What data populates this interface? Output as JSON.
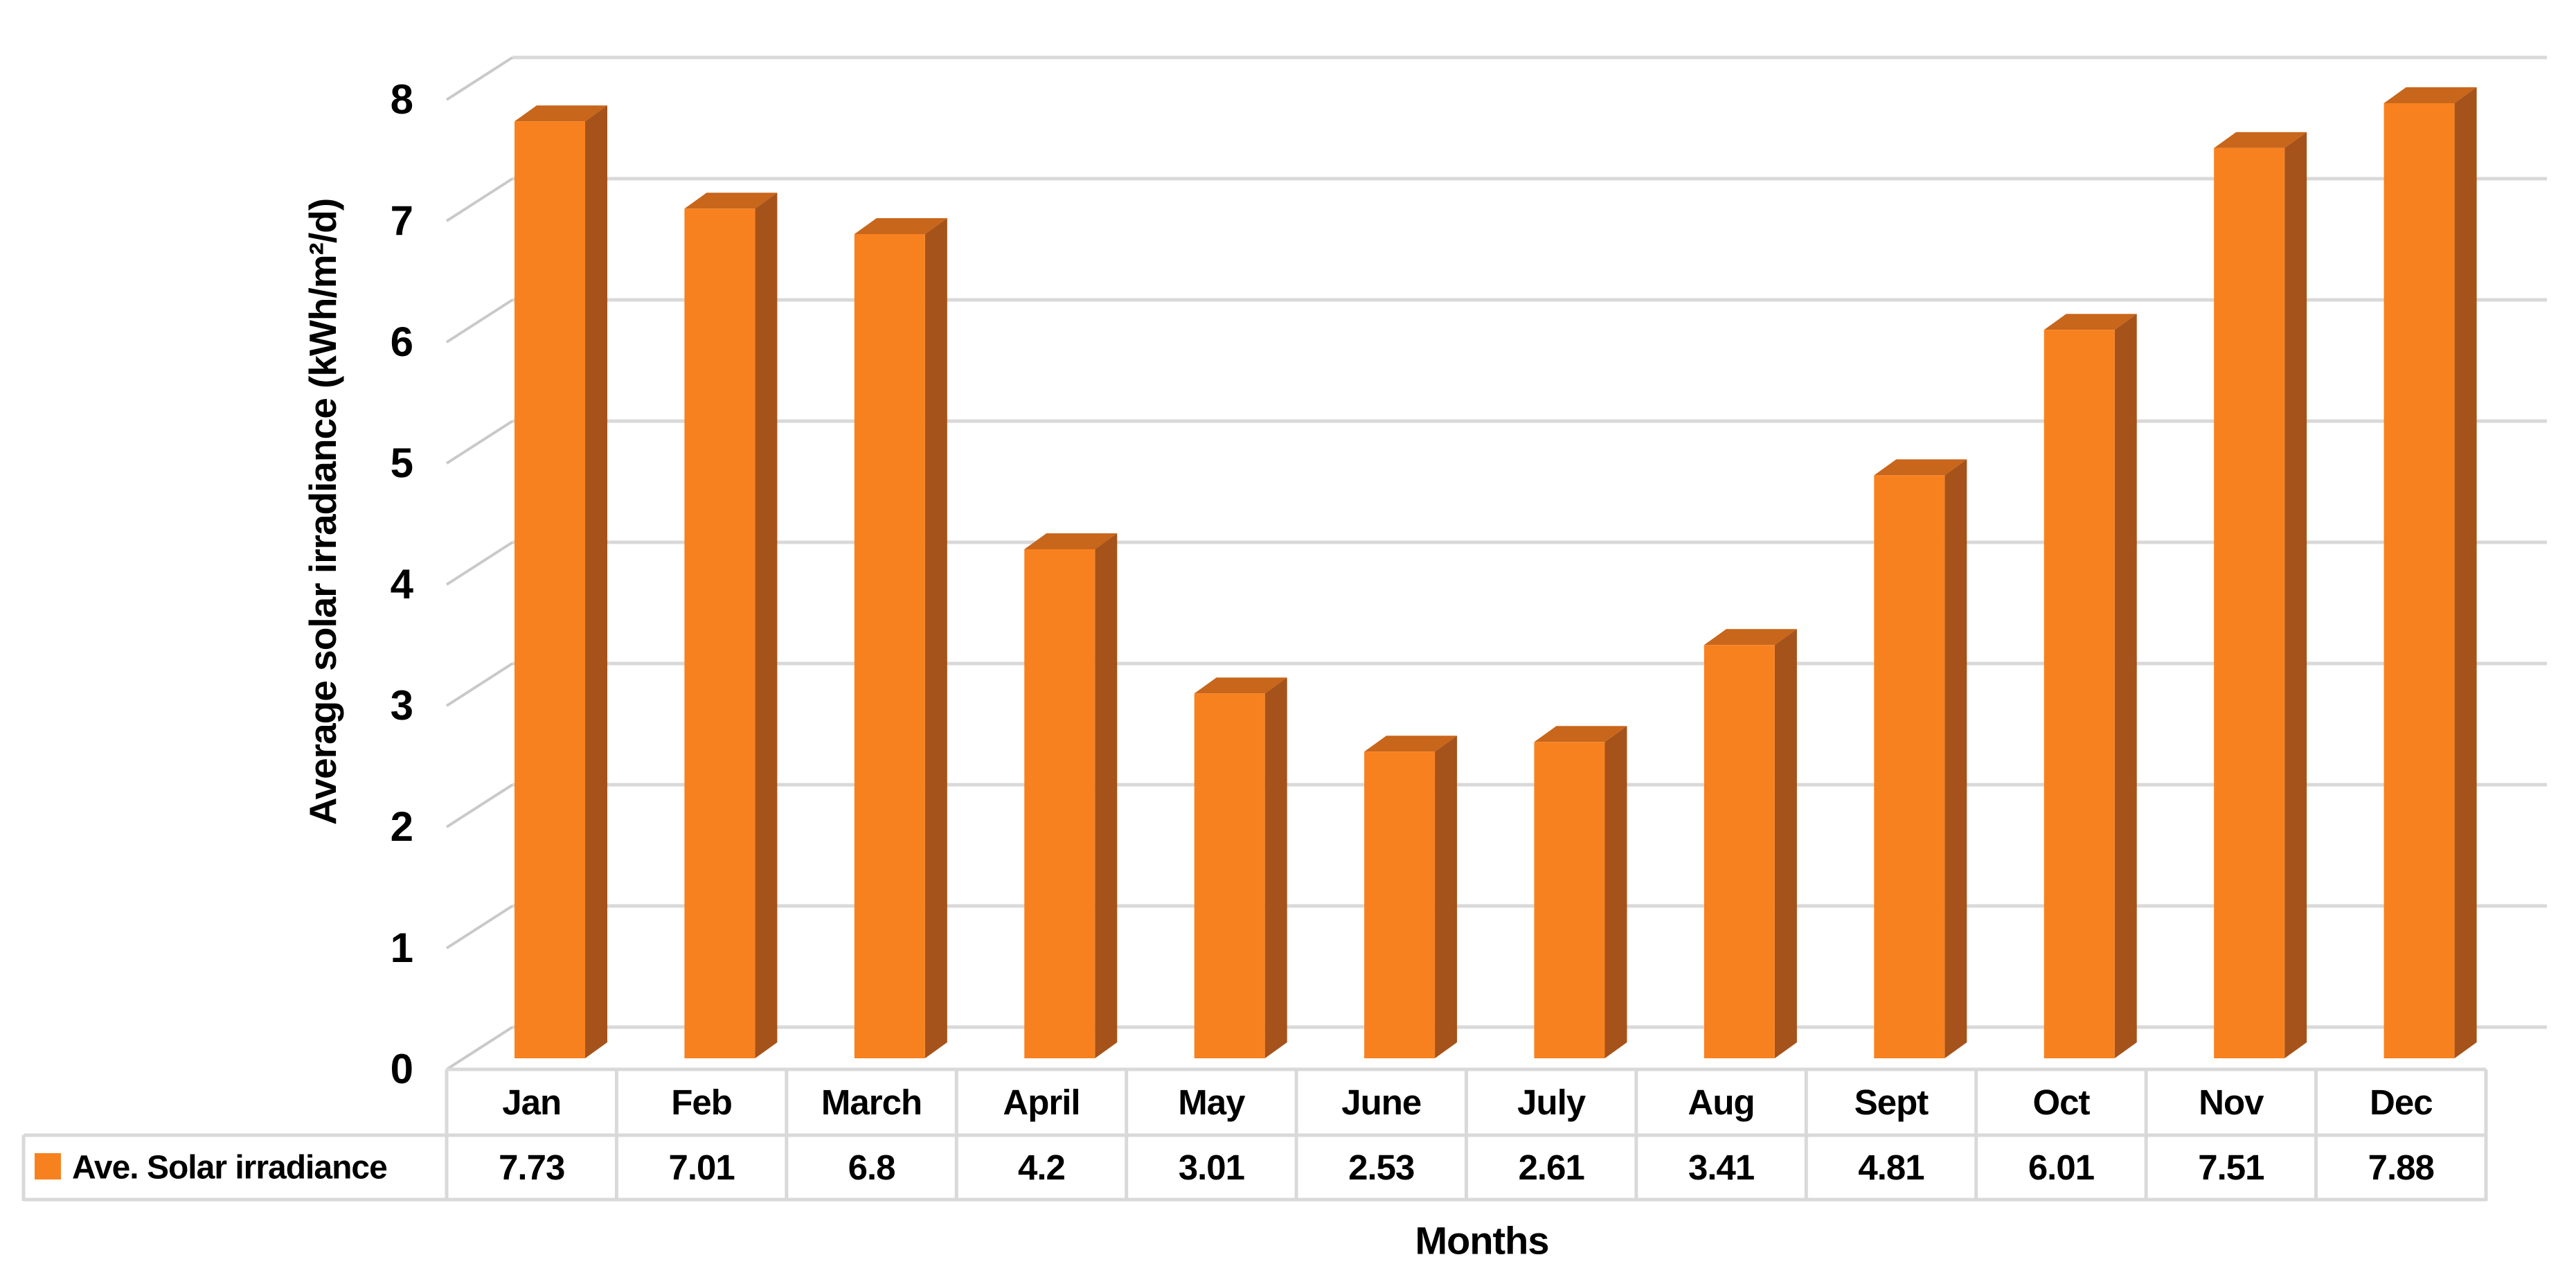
{
  "chart_data": {
    "type": "bar",
    "style": "excel-3d-column",
    "title": "",
    "categories": [
      "Jan",
      "Feb",
      "March",
      "April",
      "May",
      "June",
      "July",
      "Aug",
      "Sept",
      "Oct",
      "Nov",
      "Dec"
    ],
    "series": [
      {
        "name": "Ave. Solar irradiance",
        "values": [
          7.73,
          7.01,
          6.8,
          4.2,
          3.01,
          2.53,
          2.61,
          3.41,
          4.81,
          6.01,
          7.51,
          7.88
        ]
      }
    ],
    "xlabel": "Months",
    "ylabel": "Average solar irradiance (kWh/m²/d)",
    "ylim": [
      0,
      8
    ],
    "yticks": [
      0,
      1,
      2,
      3,
      4,
      5,
      6,
      7,
      8
    ],
    "grid": true,
    "legend_position": "left-of-data-table",
    "data_table_shown": true,
    "colors": {
      "bar_front": "#F8811F",
      "bar_top": "#C8661B",
      "bar_side": "#A5531A",
      "gridline": "#D9D9D9",
      "tick_connector": "#C9C9C9",
      "table_border": "#D9D9D9",
      "text": "#000000",
      "background": "#FFFFFF"
    }
  }
}
